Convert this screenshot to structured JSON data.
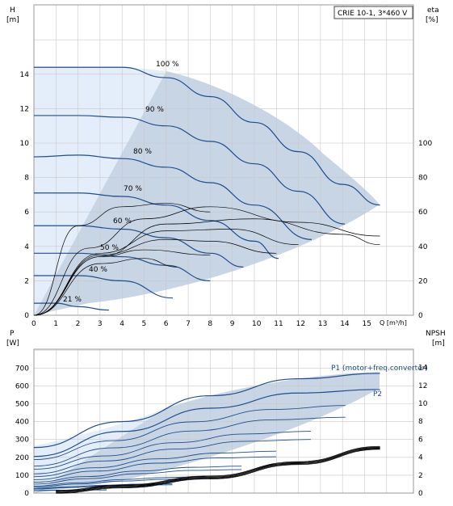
{
  "title_box": "CRIE 10-1, 3*460 V",
  "top_chart": {
    "ylabel_left": "H",
    "ylabel_left_unit": "[m]",
    "ylabel_right": "eta",
    "ylabel_right_unit": "[%]",
    "xlabel": "Q [m³/h]",
    "x_ticks": [
      "0",
      "1",
      "2",
      "3",
      "4",
      "5",
      "6",
      "7",
      "8",
      "9",
      "10",
      "11",
      "12",
      "13",
      "14",
      "15"
    ],
    "y_ticks_left": [
      "0",
      "2",
      "4",
      "6",
      "8",
      "10",
      "12",
      "14"
    ],
    "y_ticks_right": [
      "0",
      "20",
      "40",
      "60",
      "80",
      "100"
    ],
    "speed_labels": [
      "100 %",
      "90 %",
      "80 %",
      "70 %",
      "60 %",
      "50 %",
      "40 %",
      "21 %"
    ]
  },
  "bottom_chart": {
    "ylabel_left": "P",
    "ylabel_left_unit": "[W]",
    "ylabel_right": "NPSH",
    "ylabel_right_unit": "[m]",
    "y_ticks_left": [
      "0",
      "100",
      "200",
      "300",
      "400",
      "500",
      "600",
      "700"
    ],
    "y_ticks_right": [
      "0",
      "2",
      "4",
      "6",
      "8",
      "10",
      "12",
      "14"
    ],
    "series_labels": [
      "P1 (motor+freq.converter)",
      "P2"
    ]
  },
  "colors": {
    "curve": "#1f4e8c",
    "area_operating": "#c9d6e6",
    "area_light": "#e2eefa",
    "grid": "#c8c8c8",
    "eff": "#000000"
  },
  "chart_data": [
    {
      "type": "line",
      "title": "CRIE 10-1, 3*460 V",
      "xlabel": "Q [m³/h]",
      "ylabel": "H [m]",
      "y2label": "eta [%]",
      "xlim": [
        0,
        16
      ],
      "ylim": [
        0,
        16
      ],
      "y2lim": [
        0,
        120
      ],
      "grid": true,
      "series": [
        {
          "name": "100 %",
          "x": [
            0,
            2,
            4,
            6,
            8,
            10,
            12,
            14,
            15.7
          ],
          "values": [
            14.4,
            14.4,
            14.4,
            13.8,
            12.7,
            11.2,
            9.5,
            7.6,
            6.4
          ]
        },
        {
          "name": "90 %",
          "x": [
            0,
            2,
            4,
            6,
            8,
            10,
            12,
            14.1
          ],
          "values": [
            11.6,
            11.6,
            11.5,
            11.0,
            10.1,
            8.8,
            7.2,
            5.3
          ]
        },
        {
          "name": "80 %",
          "x": [
            0,
            2,
            4,
            6,
            8,
            10,
            12.6
          ],
          "values": [
            9.2,
            9.3,
            9.1,
            8.6,
            7.7,
            6.4,
            4.4
          ]
        },
        {
          "name": "70 %",
          "x": [
            0,
            2,
            4,
            6,
            8,
            10,
            11.1
          ],
          "values": [
            7.1,
            7.1,
            6.9,
            6.4,
            5.5,
            4.3,
            3.3
          ]
        },
        {
          "name": "60 %",
          "x": [
            0,
            2,
            4,
            6,
            8,
            9.5
          ],
          "values": [
            5.2,
            5.2,
            5.0,
            4.5,
            3.6,
            2.8
          ]
        },
        {
          "name": "50 %",
          "x": [
            0,
            2,
            4,
            6,
            8
          ],
          "values": [
            3.6,
            3.6,
            3.4,
            2.9,
            2.0
          ]
        },
        {
          "name": "40 %",
          "x": [
            0,
            2,
            4,
            6.3
          ],
          "values": [
            2.3,
            2.3,
            2.0,
            1.0
          ]
        },
        {
          "name": "21 %",
          "x": [
            0,
            1,
            2,
            3.4
          ],
          "values": [
            0.7,
            0.7,
            0.5,
            0.3
          ]
        }
      ]
    },
    {
      "type": "line",
      "xlabel": "Q [m³/h]",
      "ylabel": "P [W]",
      "y2label": "NPSH [m]",
      "xlim": [
        0,
        16
      ],
      "ylim": [
        0,
        700
      ],
      "y2lim": [
        0,
        14
      ],
      "grid": true,
      "series": [
        {
          "name": "P1 (motor+freq.converter)",
          "x": [
            0,
            4,
            8,
            12,
            15.7
          ],
          "values": [
            255,
            400,
            545,
            640,
            670
          ]
        },
        {
          "name": "P2",
          "x": [
            0,
            4,
            8,
            12,
            15.7
          ],
          "values": [
            205,
            345,
            475,
            560,
            580
          ]
        },
        {
          "name": "NPSH",
          "x": [
            1,
            4,
            8,
            12,
            15.7
          ],
          "values": [
            0.3,
            0.9,
            1.9,
            3.5,
            5.2
          ]
        }
      ]
    }
  ]
}
